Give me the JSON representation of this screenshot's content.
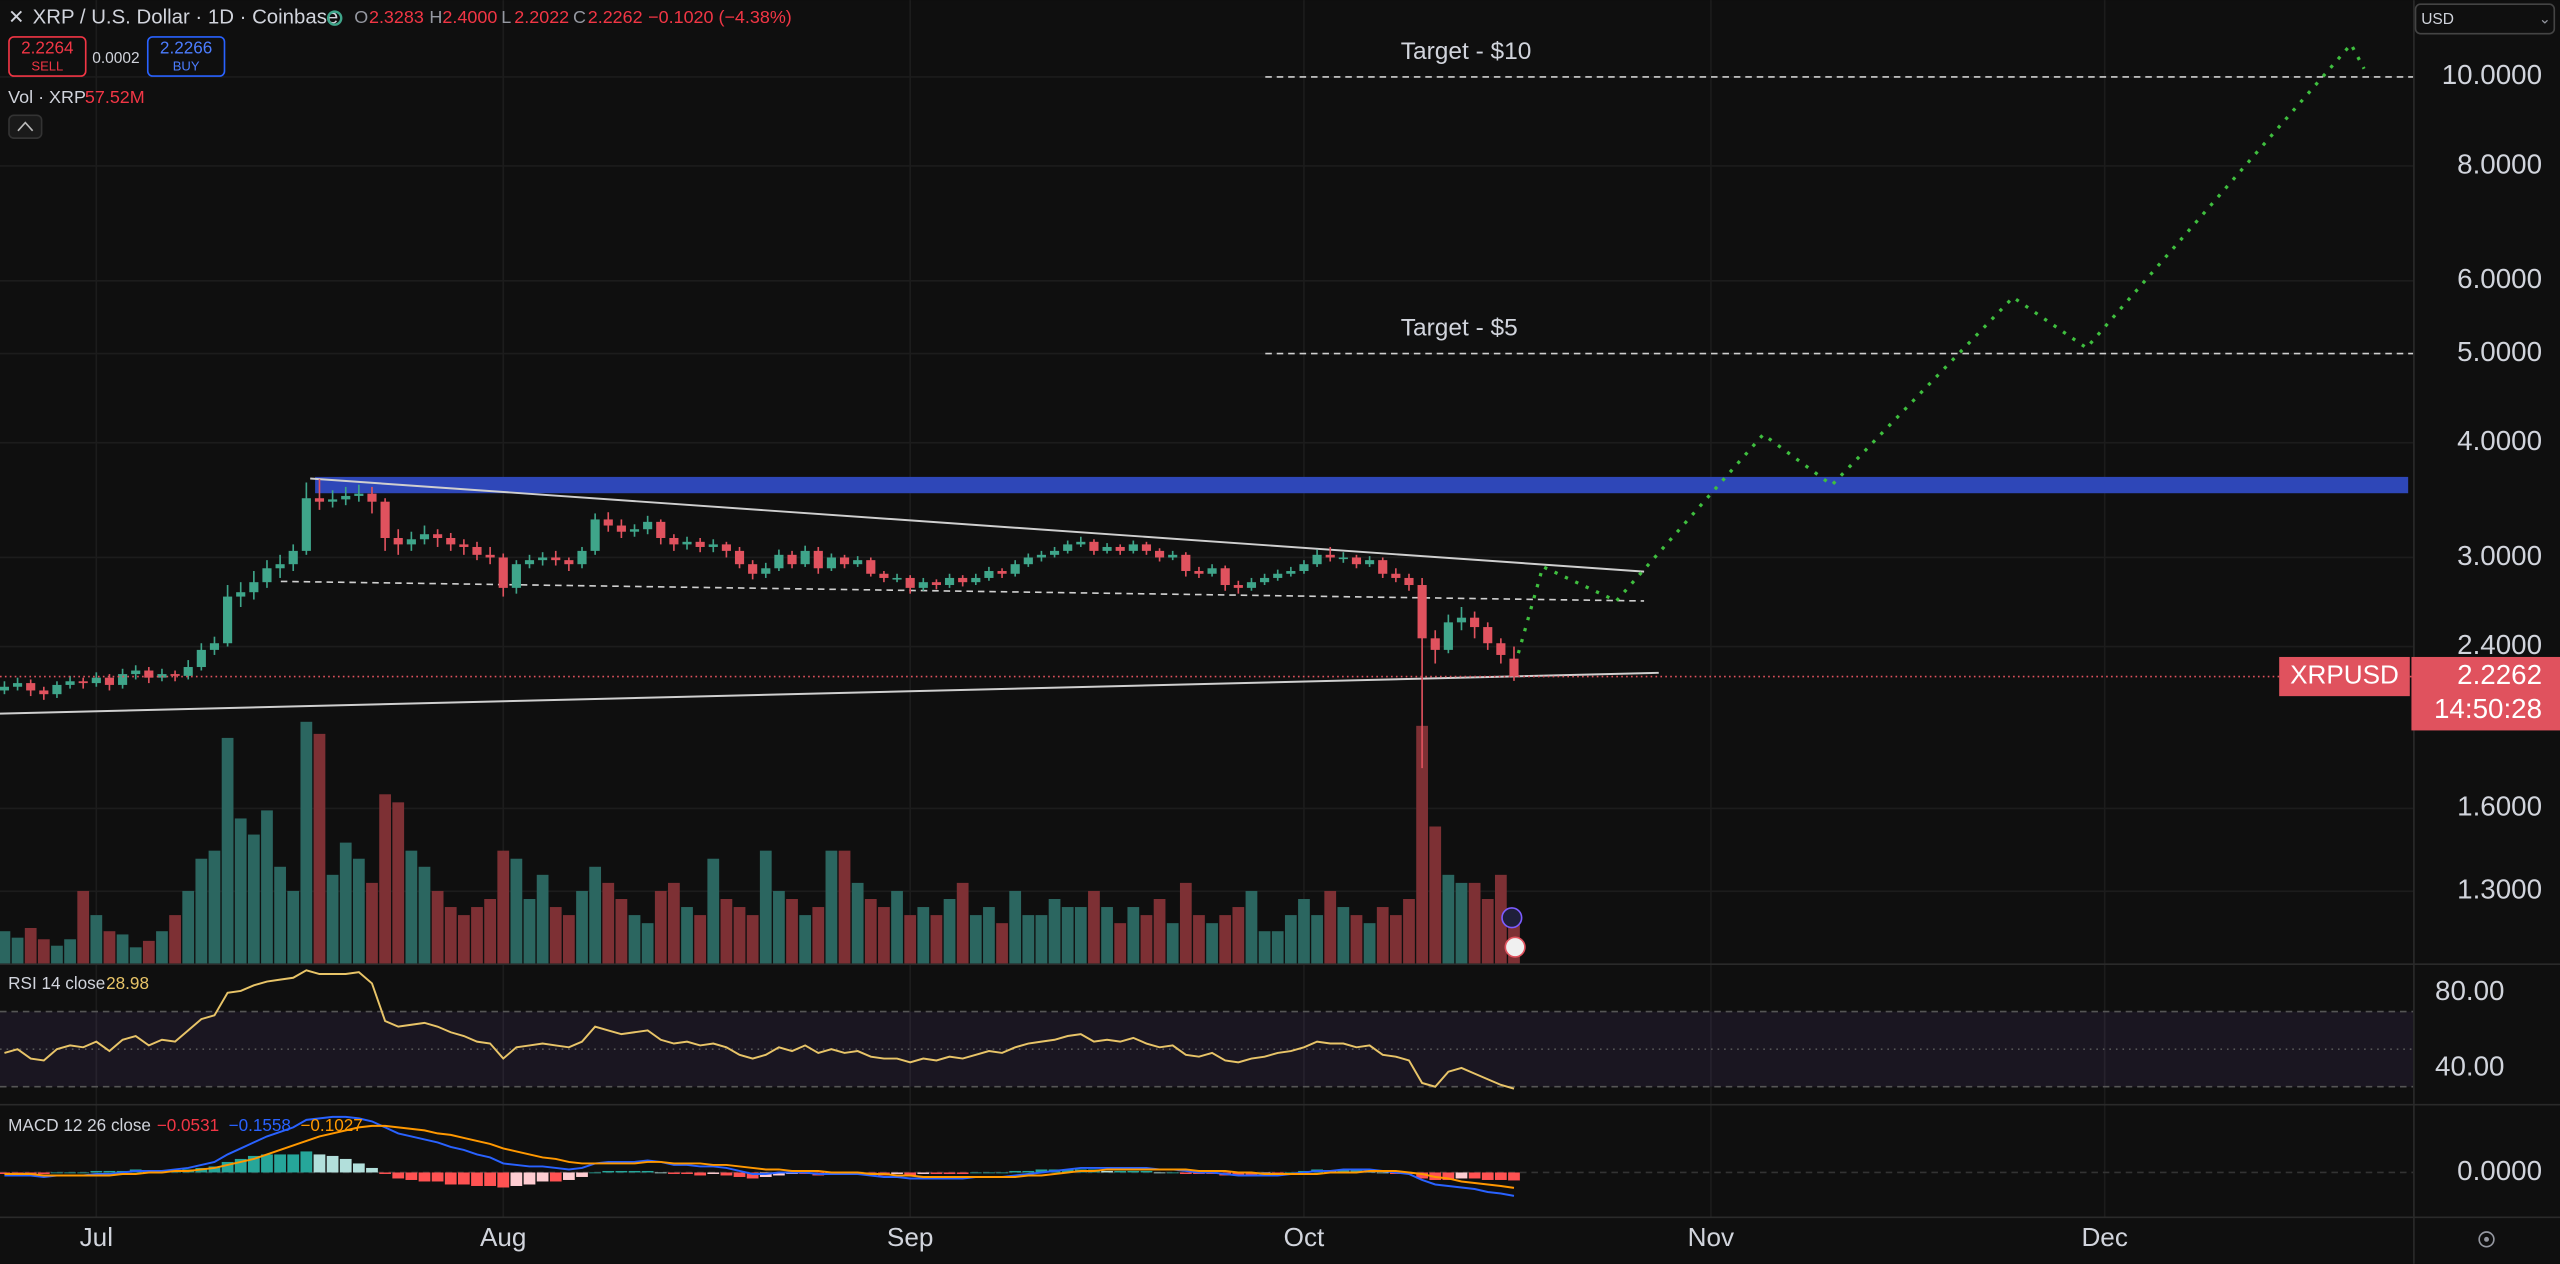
{
  "header": {
    "close_icon": "✕",
    "symbol_title": "XRP / U.S. Dollar · 1D · Coinbase",
    "open_label": "O",
    "open": "2.3283",
    "high_label": "H",
    "high": "2.4000",
    "low_label": "L",
    "low": "2.2022",
    "close_label": "C",
    "close": "2.2262",
    "change": "−0.1020 (−4.38%)",
    "sell_price": "2.2264",
    "sell": "SELL",
    "spread": "0.0002",
    "buy_price": "2.2266",
    "buy": "BUY",
    "volume_title": "Vol · XRP",
    "volume_last": "57.52M",
    "currency": "USD"
  },
  "chart_data": {
    "type": "candlestick",
    "log": true,
    "grid": true,
    "up_color": "#3fa58a",
    "down_color": "#e0525e",
    "volume_up_color": "#2b6660",
    "volume_down_color": "#7d3034",
    "ylim": [
      1.085,
      12.12
    ],
    "yticks": [
      {
        "value": 10,
        "label": "10.0000"
      },
      {
        "value": 8,
        "label": "8.0000"
      },
      {
        "value": 6,
        "label": "6.0000"
      },
      {
        "value": 5,
        "label": "5.0000"
      },
      {
        "value": 4,
        "label": "4.0000"
      },
      {
        "value": 3,
        "label": "3.0000"
      },
      {
        "value": 2.4,
        "label": "2.4000"
      },
      {
        "value": 1.6,
        "label": "1.6000"
      },
      {
        "value": 1.3,
        "label": "1.3000"
      }
    ],
    "xticks": [
      {
        "value": 7,
        "label": "Jul"
      },
      {
        "value": 38,
        "label": "Aug"
      },
      {
        "value": 69,
        "label": "Sep"
      },
      {
        "value": 99,
        "label": "Oct"
      },
      {
        "value": 130,
        "label": "Nov"
      },
      {
        "value": 160,
        "label": "Dec"
      }
    ],
    "ohlc": [
      [
        2.15,
        2.2,
        2.13,
        2.17
      ],
      [
        2.17,
        2.22,
        2.15,
        2.19
      ],
      [
        2.19,
        2.21,
        2.12,
        2.15
      ],
      [
        2.15,
        2.17,
        2.1,
        2.13
      ],
      [
        2.13,
        2.2,
        2.11,
        2.18
      ],
      [
        2.18,
        2.23,
        2.16,
        2.2
      ],
      [
        2.2,
        2.22,
        2.16,
        2.19
      ],
      [
        2.19,
        2.25,
        2.17,
        2.22
      ],
      [
        2.22,
        2.24,
        2.15,
        2.18
      ],
      [
        2.18,
        2.27,
        2.16,
        2.24
      ],
      [
        2.24,
        2.29,
        2.21,
        2.26
      ],
      [
        2.26,
        2.28,
        2.19,
        2.22
      ],
      [
        2.22,
        2.27,
        2.2,
        2.24
      ],
      [
        2.24,
        2.26,
        2.2,
        2.23
      ],
      [
        2.23,
        2.32,
        2.21,
        2.28
      ],
      [
        2.28,
        2.42,
        2.26,
        2.38
      ],
      [
        2.38,
        2.46,
        2.35,
        2.42
      ],
      [
        2.42,
        2.8,
        2.4,
        2.72
      ],
      [
        2.72,
        2.82,
        2.65,
        2.75
      ],
      [
        2.75,
        2.9,
        2.7,
        2.82
      ],
      [
        2.82,
        2.98,
        2.78,
        2.92
      ],
      [
        2.92,
        3.02,
        2.85,
        2.95
      ],
      [
        2.95,
        3.1,
        2.9,
        3.05
      ],
      [
        3.05,
        3.62,
        3.02,
        3.48
      ],
      [
        3.48,
        3.65,
        3.38,
        3.45
      ],
      [
        3.45,
        3.55,
        3.4,
        3.47
      ],
      [
        3.47,
        3.58,
        3.42,
        3.5
      ],
      [
        3.5,
        3.6,
        3.45,
        3.52
      ],
      [
        3.52,
        3.58,
        3.35,
        3.45
      ],
      [
        3.45,
        3.48,
        3.05,
        3.15
      ],
      [
        3.15,
        3.22,
        3.02,
        3.1
      ],
      [
        3.1,
        3.2,
        3.05,
        3.14
      ],
      [
        3.14,
        3.25,
        3.1,
        3.18
      ],
      [
        3.18,
        3.22,
        3.08,
        3.15
      ],
      [
        3.15,
        3.19,
        3.05,
        3.1
      ],
      [
        3.1,
        3.14,
        3.02,
        3.08
      ],
      [
        3.08,
        3.12,
        2.98,
        3.02
      ],
      [
        3.02,
        3.08,
        2.95,
        3.0
      ],
      [
        3.0,
        3.03,
        2.72,
        2.78
      ],
      [
        2.78,
        2.98,
        2.74,
        2.95
      ],
      [
        2.95,
        3.02,
        2.92,
        2.98
      ],
      [
        2.98,
        3.04,
        2.94,
        3.0
      ],
      [
        3.0,
        3.05,
        2.94,
        2.98
      ],
      [
        2.98,
        3.0,
        2.9,
        2.95
      ],
      [
        2.95,
        3.08,
        2.92,
        3.05
      ],
      [
        3.05,
        3.35,
        3.02,
        3.3
      ],
      [
        3.3,
        3.36,
        3.2,
        3.25
      ],
      [
        3.25,
        3.3,
        3.15,
        3.2
      ],
      [
        3.2,
        3.26,
        3.16,
        3.22
      ],
      [
        3.22,
        3.33,
        3.18,
        3.28
      ],
      [
        3.28,
        3.3,
        3.1,
        3.15
      ],
      [
        3.15,
        3.18,
        3.05,
        3.1
      ],
      [
        3.1,
        3.16,
        3.06,
        3.12
      ],
      [
        3.12,
        3.15,
        3.04,
        3.08
      ],
      [
        3.08,
        3.14,
        3.04,
        3.1
      ],
      [
        3.1,
        3.12,
        3.0,
        3.05
      ],
      [
        3.05,
        3.08,
        2.92,
        2.95
      ],
      [
        2.95,
        2.98,
        2.84,
        2.88
      ],
      [
        2.88,
        2.96,
        2.85,
        2.92
      ],
      [
        2.92,
        3.06,
        2.9,
        3.02
      ],
      [
        3.02,
        3.05,
        2.92,
        2.95
      ],
      [
        2.95,
        3.09,
        2.93,
        3.05
      ],
      [
        3.05,
        3.08,
        2.88,
        2.92
      ],
      [
        2.92,
        3.03,
        2.9,
        3.0
      ],
      [
        3.0,
        3.02,
        2.92,
        2.95
      ],
      [
        2.95,
        3.01,
        2.93,
        2.98
      ],
      [
        2.98,
        3.0,
        2.86,
        2.88
      ],
      [
        2.88,
        2.9,
        2.82,
        2.85
      ],
      [
        2.85,
        2.88,
        2.82,
        2.85
      ],
      [
        2.85,
        2.87,
        2.74,
        2.78
      ],
      [
        2.78,
        2.85,
        2.76,
        2.82
      ],
      [
        2.82,
        2.84,
        2.77,
        2.8
      ],
      [
        2.8,
        2.88,
        2.78,
        2.85
      ],
      [
        2.85,
        2.87,
        2.79,
        2.82
      ],
      [
        2.82,
        2.88,
        2.8,
        2.85
      ],
      [
        2.85,
        2.93,
        2.83,
        2.9
      ],
      [
        2.9,
        2.92,
        2.85,
        2.88
      ],
      [
        2.88,
        2.98,
        2.86,
        2.95
      ],
      [
        2.95,
        3.03,
        2.93,
        3.0
      ],
      [
        3.0,
        3.05,
        2.97,
        3.02
      ],
      [
        3.02,
        3.08,
        3.0,
        3.05
      ],
      [
        3.05,
        3.13,
        3.03,
        3.1
      ],
      [
        3.1,
        3.16,
        3.08,
        3.12
      ],
      [
        3.12,
        3.14,
        3.02,
        3.05
      ],
      [
        3.05,
        3.11,
        3.03,
        3.08
      ],
      [
        3.08,
        3.1,
        3.02,
        3.05
      ],
      [
        3.05,
        3.13,
        3.03,
        3.1
      ],
      [
        3.1,
        3.12,
        3.02,
        3.05
      ],
      [
        3.05,
        3.07,
        2.97,
        3.0
      ],
      [
        3.0,
        3.05,
        2.98,
        3.02
      ],
      [
        3.02,
        3.04,
        2.86,
        2.9
      ],
      [
        2.9,
        2.93,
        2.85,
        2.88
      ],
      [
        2.88,
        2.95,
        2.86,
        2.92
      ],
      [
        2.92,
        2.94,
        2.76,
        2.8
      ],
      [
        2.8,
        2.83,
        2.74,
        2.78
      ],
      [
        2.78,
        2.85,
        2.76,
        2.82
      ],
      [
        2.82,
        2.88,
        2.8,
        2.85
      ],
      [
        2.85,
        2.91,
        2.83,
        2.88
      ],
      [
        2.88,
        2.93,
        2.86,
        2.9
      ],
      [
        2.9,
        2.98,
        2.88,
        2.95
      ],
      [
        2.95,
        3.06,
        2.93,
        3.02
      ],
      [
        3.02,
        3.08,
        2.97,
        3.0
      ],
      [
        3.0,
        3.04,
        2.96,
        3.0
      ],
      [
        3.0,
        3.02,
        2.92,
        2.95
      ],
      [
        2.95,
        3.01,
        2.93,
        2.98
      ],
      [
        2.98,
        3.0,
        2.85,
        2.88
      ],
      [
        2.88,
        2.92,
        2.82,
        2.85
      ],
      [
        2.85,
        2.88,
        2.76,
        2.8
      ],
      [
        2.8,
        2.85,
        1.77,
        2.45
      ],
      [
        2.45,
        2.5,
        2.3,
        2.38
      ],
      [
        2.38,
        2.6,
        2.36,
        2.55
      ],
      [
        2.55,
        2.65,
        2.5,
        2.58
      ],
      [
        2.58,
        2.62,
        2.45,
        2.52
      ],
      [
        2.52,
        2.55,
        2.38,
        2.42
      ],
      [
        2.42,
        2.45,
        2.3,
        2.35
      ],
      [
        2.3283,
        2.4,
        2.2022,
        2.2262
      ]
    ],
    "volume": [
      40,
      32,
      44,
      30,
      22,
      30,
      90,
      60,
      40,
      36,
      20,
      28,
      40,
      60,
      90,
      130,
      140,
      280,
      180,
      160,
      190,
      120,
      90,
      300,
      285,
      110,
      150,
      130,
      100,
      210,
      200,
      140,
      120,
      90,
      70,
      60,
      70,
      80,
      140,
      130,
      80,
      110,
      70,
      60,
      90,
      120,
      100,
      80,
      60,
      50,
      90,
      100,
      70,
      60,
      130,
      80,
      70,
      60,
      140,
      90,
      80,
      60,
      70,
      140,
      140,
      100,
      80,
      70,
      90,
      60,
      70,
      60,
      80,
      100,
      60,
      70,
      50,
      90,
      60,
      60,
      80,
      70,
      70,
      90,
      70,
      50,
      70,
      60,
      80,
      50,
      100,
      60,
      50,
      60,
      70,
      90,
      40,
      40,
      60,
      80,
      60,
      90,
      70,
      60,
      50,
      70,
      60,
      80,
      295,
      170,
      110,
      100,
      100,
      80,
      110,
      57.52
    ],
    "price_tag": {
      "symbol": "XRPUSD",
      "countdown": "14:50:28",
      "color": "#e0525e"
    },
    "targets": [
      {
        "label": "Target - $10",
        "price": 10
      },
      {
        "label": "Target - $5",
        "price": 5
      }
    ],
    "rsi": {
      "title": "RSI 14 close",
      "color": "#e8c468",
      "ylim": [
        20.9,
        93.9
      ],
      "yticks": [
        {
          "value": 80,
          "label": "80.00"
        },
        {
          "value": 40,
          "label": "40.00"
        }
      ],
      "levels": [
        70,
        50,
        30
      ],
      "values": [
        48,
        50,
        45,
        44,
        50,
        52,
        51,
        54,
        49,
        55,
        57,
        52,
        55,
        54,
        60,
        66,
        68,
        80,
        81,
        84,
        86,
        87,
        88,
        92,
        90,
        90,
        90,
        91,
        85,
        65,
        62,
        63,
        64,
        62,
        59,
        57,
        54,
        53,
        45,
        51,
        52,
        53,
        52,
        51,
        54,
        62,
        60,
        58,
        59,
        60,
        55,
        53,
        54,
        52,
        53,
        51,
        47,
        45,
        47,
        51,
        49,
        52,
        48,
        50,
        48,
        49,
        46,
        45,
        45,
        43,
        45,
        44,
        46,
        45,
        47,
        49,
        48,
        51,
        53,
        54,
        55,
        57,
        58,
        54,
        55,
        54,
        56,
        53,
        51,
        52,
        47,
        46,
        48,
        44,
        43,
        45,
        46,
        48,
        49,
        51,
        54,
        53,
        53,
        51,
        52,
        47,
        46,
        44,
        32,
        30,
        38,
        40,
        37,
        34,
        31,
        28.98
      ]
    },
    "macd": {
      "title": "MACD 12 26 close",
      "macd_color": "#2962ff",
      "signal_color": "#ff9800",
      "ylim": [
        -0.293,
        0.435
      ],
      "yticks": [
        {
          "value": 0,
          "label": "0.0000"
        }
      ],
      "value_labels": {
        "hist": "−0.0531",
        "macd": "−0.1558",
        "signal": "−0.1027"
      },
      "macd": [
        -0.02,
        -0.02,
        -0.02,
        -0.03,
        -0.02,
        -0.02,
        -0.02,
        -0.01,
        -0.01,
        0,
        0.01,
        0.01,
        0.01,
        0.02,
        0.03,
        0.05,
        0.07,
        0.12,
        0.16,
        0.2,
        0.24,
        0.27,
        0.3,
        0.35,
        0.36,
        0.37,
        0.37,
        0.36,
        0.34,
        0.3,
        0.26,
        0.24,
        0.22,
        0.2,
        0.17,
        0.15,
        0.12,
        0.1,
        0.06,
        0.05,
        0.04,
        0.04,
        0.03,
        0.02,
        0.03,
        0.06,
        0.07,
        0.07,
        0.07,
        0.08,
        0.07,
        0.05,
        0.05,
        0.04,
        0.04,
        0.03,
        0.01,
        -0.01,
        -0.01,
        0,
        0,
        0,
        -0.01,
        -0.01,
        -0.01,
        -0.01,
        -0.02,
        -0.03,
        -0.03,
        -0.04,
        -0.04,
        -0.04,
        -0.04,
        -0.04,
        -0.03,
        -0.03,
        -0.03,
        -0.02,
        -0.01,
        0,
        0.01,
        0.02,
        0.03,
        0.03,
        0.03,
        0.03,
        0.03,
        0.03,
        0.02,
        0.02,
        0.01,
        0,
        0,
        -0.01,
        -0.02,
        -0.02,
        -0.02,
        -0.02,
        -0.01,
        0,
        0.01,
        0.01,
        0.02,
        0.02,
        0.02,
        0.01,
        0,
        -0.01,
        -0.05,
        -0.08,
        -0.09,
        -0.1,
        -0.11,
        -0.13,
        -0.14,
        -0.1558
      ],
      "signal": [
        -0.01,
        -0.01,
        -0.01,
        -0.02,
        -0.02,
        -0.02,
        -0.02,
        -0.02,
        -0.02,
        -0.01,
        -0.01,
        0,
        0,
        0.01,
        0.01,
        0.02,
        0.03,
        0.05,
        0.07,
        0.09,
        0.12,
        0.15,
        0.18,
        0.21,
        0.24,
        0.26,
        0.28,
        0.3,
        0.31,
        0.31,
        0.3,
        0.29,
        0.28,
        0.26,
        0.25,
        0.23,
        0.21,
        0.19,
        0.16,
        0.14,
        0.12,
        0.1,
        0.09,
        0.07,
        0.06,
        0.06,
        0.06,
        0.06,
        0.06,
        0.07,
        0.07,
        0.06,
        0.06,
        0.06,
        0.05,
        0.05,
        0.04,
        0.03,
        0.02,
        0.02,
        0.01,
        0.01,
        0.01,
        0,
        0,
        0,
        -0.01,
        -0.01,
        -0.02,
        -0.02,
        -0.03,
        -0.03,
        -0.03,
        -0.03,
        -0.03,
        -0.03,
        -0.03,
        -0.03,
        -0.02,
        -0.02,
        -0.01,
        0,
        0.01,
        0.01,
        0.02,
        0.02,
        0.02,
        0.02,
        0.02,
        0.02,
        0.02,
        0.01,
        0.01,
        0.01,
        0,
        0,
        -0.01,
        -0.01,
        -0.01,
        -0.01,
        -0.01,
        0,
        0,
        0,
        0.01,
        0.01,
        0.01,
        0,
        -0.01,
        -0.03,
        -0.04,
        -0.06,
        -0.07,
        -0.08,
        -0.09,
        -0.1027
      ],
      "hist": [
        -0.01,
        -0.01,
        -0.01,
        -0.01,
        0,
        0,
        0,
        0.01,
        0.01,
        0.01,
        0.02,
        0.01,
        0.01,
        0.01,
        0.02,
        0.03,
        0.04,
        0.07,
        0.09,
        0.11,
        0.12,
        0.12,
        0.12,
        0.14,
        0.12,
        0.11,
        0.09,
        0.06,
        0.03,
        -0.01,
        -0.04,
        -0.05,
        -0.06,
        -0.06,
        -0.08,
        -0.08,
        -0.09,
        -0.09,
        -0.1,
        -0.09,
        -0.08,
        -0.06,
        -0.06,
        -0.05,
        -0.03,
        0,
        0.01,
        0.01,
        0.01,
        0.01,
        0,
        -0.01,
        -0.01,
        -0.02,
        -0.01,
        -0.02,
        -0.03,
        -0.04,
        -0.03,
        -0.02,
        -0.01,
        -0.01,
        -0.02,
        -0.01,
        -0.01,
        -0.01,
        -0.01,
        -0.02,
        -0.01,
        -0.02,
        -0.01,
        -0.01,
        -0.01,
        -0.01,
        0,
        0,
        0,
        0.01,
        0.01,
        0.02,
        0.02,
        0.02,
        0.02,
        0.02,
        0.01,
        0.01,
        0.01,
        0.01,
        0,
        0,
        -0.01,
        -0.01,
        -0.01,
        -0.02,
        -0.02,
        -0.02,
        -0.01,
        -0.01,
        0,
        0.01,
        0.02,
        0.01,
        0.02,
        0.02,
        0.01,
        0,
        -0.01,
        -0.01,
        -0.04,
        -0.05,
        -0.05,
        -0.04,
        -0.04,
        -0.05,
        -0.05,
        -0.0531
      ]
    }
  }
}
